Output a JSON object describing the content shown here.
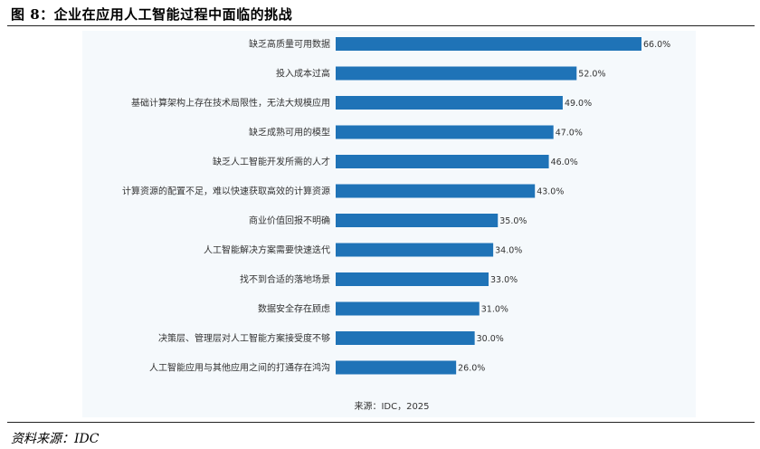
{
  "figure": {
    "title": "图 8：企业在应用人工智能过程中面临的挑战",
    "footer_source": "资料来源：IDC"
  },
  "colors": {
    "bar": "#1f73b7",
    "panel_bg": "#f5f9fc",
    "text": "#333333"
  },
  "chart_data": {
    "type": "bar",
    "orientation": "horizontal",
    "categories": [
      "缺乏高质量可用数据",
      "投入成本过高",
      "基础计算架构上存在技术局限性，无法大规模应用",
      "缺乏成熟可用的模型",
      "缺乏人工智能开发所需的人才",
      "计算资源的配置不足，难以快速获取高效的计算资源",
      "商业价值回报不明确",
      "人工智能解决方案需要快速迭代",
      "找不到合适的落地场景",
      "数据安全存在顾虑",
      "决策层、管理层对人工智能方案接受度不够",
      "人工智能应用与其他应用之间的打通存在鸿沟"
    ],
    "values": [
      66.0,
      52.0,
      49.0,
      47.0,
      46.0,
      43.0,
      35.0,
      34.0,
      33.0,
      31.0,
      30.0,
      26.0
    ],
    "data_labels": [
      "66.0%",
      "52.0%",
      "49.0%",
      "47.0%",
      "46.0%",
      "43.0%",
      "35.0%",
      "34.0%",
      "33.0%",
      "31.0%",
      "30.0%",
      "26.0%"
    ],
    "unit": "%",
    "xlim": [
      0,
      66
    ],
    "grid": false,
    "source_note": "来源：IDC，2025"
  }
}
